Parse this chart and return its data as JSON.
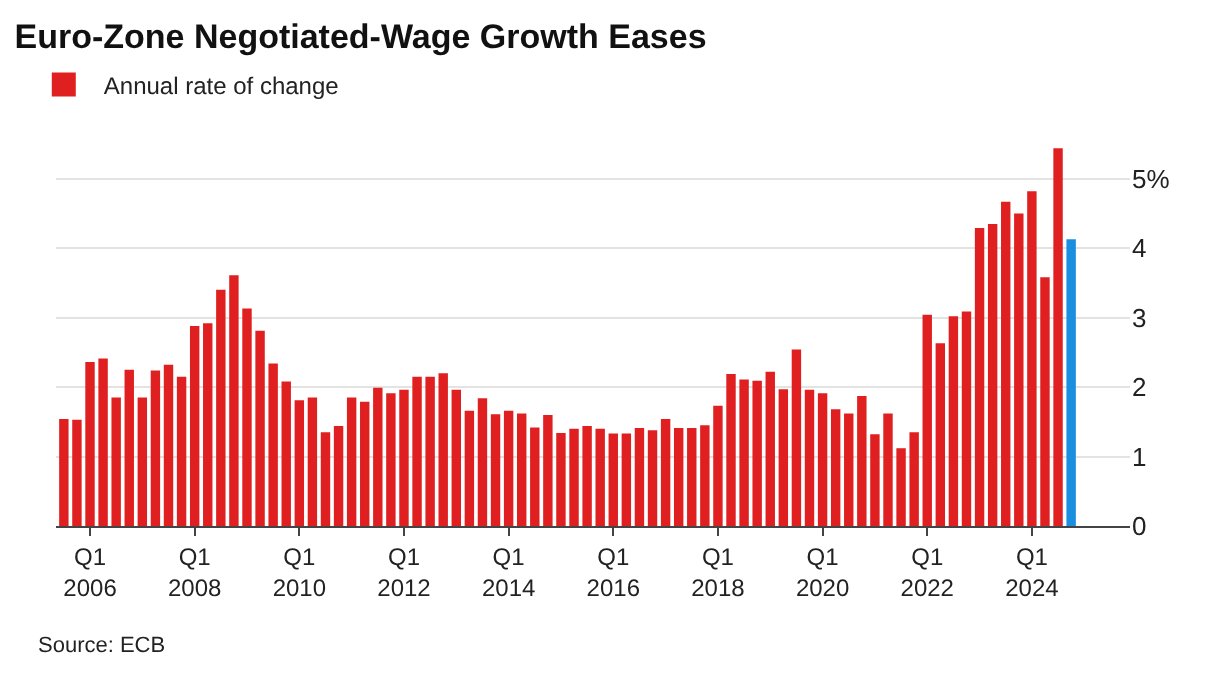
{
  "chart_data": {
    "type": "bar",
    "title": "Euro-Zone Negotiated-Wage Growth Eases",
    "categories": [
      null,
      null,
      "Q1\n2006",
      null,
      null,
      null,
      null,
      null,
      null,
      null,
      "Q1\n2008",
      null,
      null,
      null,
      null,
      null,
      null,
      null,
      "Q1\n2010",
      null,
      null,
      null,
      null,
      null,
      null,
      null,
      "Q1\n2012",
      null,
      null,
      null,
      null,
      null,
      null,
      null,
      "Q1\n2014",
      null,
      null,
      null,
      null,
      null,
      null,
      null,
      "Q1\n2016",
      null,
      null,
      null,
      null,
      null,
      null,
      null,
      "Q1\n2018",
      null,
      null,
      null,
      null,
      null,
      null,
      null,
      "Q1\n2020",
      null,
      null,
      null,
      null,
      null,
      null,
      null,
      "Q1\n2022",
      null,
      null,
      null,
      null,
      null,
      null,
      null,
      "Q1\n2024",
      null,
      null,
      null
    ],
    "series": [
      {
        "name": "Annual rate of change",
        "colors": [
          "#e02020",
          "#e02020",
          "#e02020",
          "#e02020",
          "#e02020",
          "#e02020",
          "#e02020",
          "#e02020",
          "#e02020",
          "#e02020",
          "#e02020",
          "#e02020",
          "#e02020",
          "#e02020",
          "#e02020",
          "#e02020",
          "#e02020",
          "#e02020",
          "#e02020",
          "#e02020",
          "#e02020",
          "#e02020",
          "#e02020",
          "#e02020",
          "#e02020",
          "#e02020",
          "#e02020",
          "#e02020",
          "#e02020",
          "#e02020",
          "#e02020",
          "#e02020",
          "#e02020",
          "#e02020",
          "#e02020",
          "#e02020",
          "#e02020",
          "#e02020",
          "#e02020",
          "#e02020",
          "#e02020",
          "#e02020",
          "#e02020",
          "#e02020",
          "#e02020",
          "#e02020",
          "#e02020",
          "#e02020",
          "#e02020",
          "#e02020",
          "#e02020",
          "#e02020",
          "#e02020",
          "#e02020",
          "#e02020",
          "#e02020",
          "#e02020",
          "#e02020",
          "#e02020",
          "#e02020",
          "#e02020",
          "#e02020",
          "#e02020",
          "#e02020",
          "#e02020",
          "#e02020",
          "#e02020",
          "#e02020",
          "#e02020",
          "#e02020",
          "#e02020",
          "#e02020",
          "#e02020",
          "#e02020",
          "#e02020",
          "#e02020",
          "#e02020",
          "#1a8fe0"
        ],
        "values": [
          1.54,
          1.53,
          2.36,
          2.41,
          1.85,
          2.25,
          1.85,
          2.24,
          2.32,
          2.15,
          2.88,
          2.92,
          3.4,
          3.61,
          3.13,
          2.81,
          2.34,
          2.08,
          1.81,
          1.85,
          1.35,
          1.44,
          1.85,
          1.79,
          1.99,
          1.91,
          1.96,
          2.15,
          2.15,
          2.2,
          1.96,
          1.66,
          1.84,
          1.61,
          1.66,
          1.62,
          1.42,
          1.6,
          1.34,
          1.4,
          1.44,
          1.4,
          1.33,
          1.33,
          1.41,
          1.38,
          1.54,
          1.41,
          1.41,
          1.45,
          1.73,
          2.19,
          2.11,
          2.09,
          2.22,
          1.97,
          2.54,
          1.96,
          1.91,
          1.68,
          1.62,
          1.87,
          1.32,
          1.62,
          1.12,
          1.35,
          3.04,
          2.63,
          3.02,
          3.09,
          4.29,
          4.35,
          4.67,
          4.5,
          4.82,
          3.58,
          5.44,
          4.13
        ]
      }
    ],
    "ylim": [
      0,
      5.5
    ],
    "yticks": [
      0,
      1,
      2,
      3,
      4,
      {
        "value": 5,
        "label": "5%"
      }
    ],
    "grid": "y",
    "legend": "top left",
    "annotations": [
      "Source: ECB"
    ]
  }
}
